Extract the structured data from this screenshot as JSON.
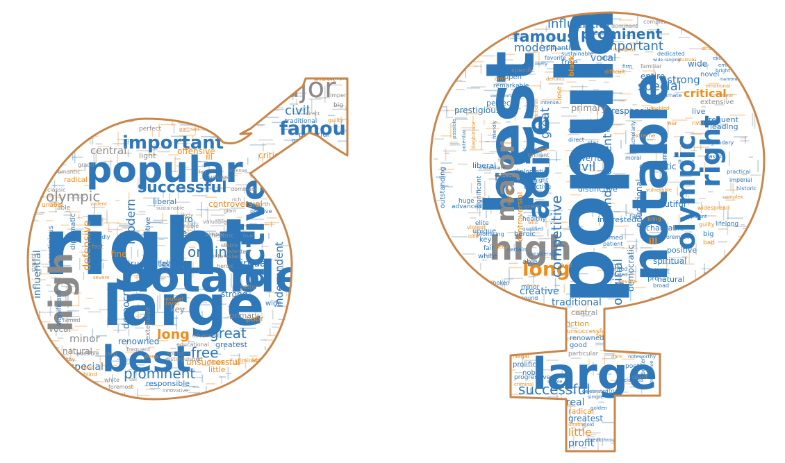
{
  "colors": {
    "outline": "#c8864a",
    "blue": "#2e77b8",
    "gray": "#8a8a8a",
    "orange": "#f08c1a"
  },
  "male": {
    "words": [
      {
        "t": "right",
        "c": "blue"
      },
      {
        "t": "large",
        "c": "blue"
      },
      {
        "t": "notable",
        "c": "blue"
      },
      {
        "t": "popular",
        "c": "blue"
      },
      {
        "t": "best",
        "c": "blue"
      },
      {
        "t": "high",
        "c": "gray"
      },
      {
        "t": "active",
        "c": "blue"
      },
      {
        "t": "major",
        "c": "gray"
      },
      {
        "t": "famous",
        "c": "blue"
      },
      {
        "t": "important",
        "c": "blue"
      },
      {
        "t": "successful",
        "c": "blue"
      },
      {
        "t": "original",
        "c": "blue"
      },
      {
        "t": "olympic",
        "c": "gray"
      },
      {
        "t": "great",
        "c": "blue"
      },
      {
        "t": "free",
        "c": "blue"
      },
      {
        "t": "prominent",
        "c": "blue"
      },
      {
        "t": "long",
        "c": "orange"
      },
      {
        "t": "central",
        "c": "gray"
      },
      {
        "t": "civil",
        "c": "blue"
      },
      {
        "t": "modern",
        "c": "blue"
      },
      {
        "t": "defensive",
        "c": "orange"
      },
      {
        "t": "independent",
        "c": "blue"
      },
      {
        "t": "democratic",
        "c": "blue"
      },
      {
        "t": "influential",
        "c": "blue"
      },
      {
        "t": "spiritual",
        "c": "blue"
      },
      {
        "t": "instrumental",
        "c": "blue"
      },
      {
        "t": "minor",
        "c": "gray"
      },
      {
        "t": "special",
        "c": "blue"
      },
      {
        "t": "vocal",
        "c": "gray"
      },
      {
        "t": "natural",
        "c": "gray"
      },
      {
        "t": "strong",
        "c": "blue"
      },
      {
        "t": "leading",
        "c": "blue"
      },
      {
        "t": "renowned",
        "c": "blue"
      },
      {
        "t": "unsuccessful",
        "c": "orange"
      },
      {
        "t": "responsible",
        "c": "blue"
      },
      {
        "t": "offensive",
        "c": "orange"
      },
      {
        "t": "controversial",
        "c": "orange"
      },
      {
        "t": "critical",
        "c": "orange"
      },
      {
        "t": "liberal",
        "c": "blue"
      },
      {
        "t": "light",
        "c": "gray"
      },
      {
        "t": "fine",
        "c": "orange"
      },
      {
        "t": "pro",
        "c": "blue"
      },
      {
        "t": "primary",
        "c": "gray"
      },
      {
        "t": "greatest",
        "c": "blue"
      },
      {
        "t": "prolific",
        "c": "blue"
      },
      {
        "t": "traditional",
        "c": "blue"
      },
      {
        "t": "good",
        "c": "blue"
      },
      {
        "t": "real",
        "c": "blue"
      },
      {
        "t": "fiction",
        "c": "blue"
      },
      {
        "t": "key",
        "c": "gray"
      },
      {
        "t": "wide",
        "c": "blue"
      },
      {
        "t": "live",
        "c": "blue"
      },
      {
        "t": "poor",
        "c": "orange"
      },
      {
        "t": "little",
        "c": "orange"
      },
      {
        "t": "radical",
        "c": "orange"
      },
      {
        "t": "competitive",
        "c": "blue"
      },
      {
        "t": "diplomatic",
        "c": "blue"
      },
      {
        "t": "prestigious",
        "c": "blue"
      },
      {
        "t": "extensive",
        "c": "gray"
      },
      {
        "t": "significant",
        "c": "blue"
      },
      {
        "t": "positive",
        "c": "blue"
      },
      {
        "t": "unique",
        "c": "gray"
      },
      {
        "t": "powerful",
        "c": "blue"
      },
      {
        "t": "black",
        "c": "orange"
      },
      {
        "t": "entire",
        "c": "gray"
      },
      {
        "t": "historic",
        "c": "gray"
      },
      {
        "t": "noble",
        "c": "gray"
      },
      {
        "t": "able",
        "c": "gray"
      },
      {
        "t": "interested",
        "c": "gray"
      },
      {
        "t": "distinguished",
        "c": "gray"
      },
      {
        "t": "romantic",
        "c": "gray"
      },
      {
        "t": "perfect",
        "c": "gray"
      },
      {
        "t": "fast",
        "c": "gray"
      },
      {
        "t": "big",
        "c": "gray"
      },
      {
        "t": "rival",
        "c": "orange"
      },
      {
        "t": "illegal",
        "c": "orange"
      },
      {
        "t": "outstanding",
        "c": "gray"
      },
      {
        "t": "sound",
        "c": "gray"
      },
      {
        "t": "blind",
        "c": "orange"
      },
      {
        "t": "white",
        "c": "gray"
      },
      {
        "t": "foremost",
        "c": "gray"
      },
      {
        "t": "dead",
        "c": "orange"
      },
      {
        "t": "possible",
        "c": "gray"
      },
      {
        "t": "educational",
        "c": "gray"
      },
      {
        "t": "advanced",
        "c": "gray"
      },
      {
        "t": "innovative",
        "c": "gray"
      },
      {
        "t": "heroic",
        "c": "gray"
      },
      {
        "t": "keen",
        "c": "orange"
      },
      {
        "t": "criminal",
        "c": "orange"
      },
      {
        "t": "famed",
        "c": "gray"
      },
      {
        "t": "friendly",
        "c": "blue"
      },
      {
        "t": "stable",
        "c": "gray"
      },
      {
        "t": "imperial",
        "c": "gray"
      },
      {
        "t": "valuable",
        "c": "gray"
      },
      {
        "t": "talented",
        "c": "gray"
      },
      {
        "t": "simple",
        "c": "gray"
      },
      {
        "t": "unable",
        "c": "orange"
      },
      {
        "t": "classic",
        "c": "gray"
      },
      {
        "t": "grand",
        "c": "gray"
      },
      {
        "t": "worth",
        "c": "gray"
      },
      {
        "t": "complex",
        "c": "gray"
      },
      {
        "t": "dominant",
        "c": "gray"
      },
      {
        "t": "guilty",
        "c": "orange"
      },
      {
        "t": "creative",
        "c": "gray"
      },
      {
        "t": "remarkable",
        "c": "gray"
      },
      {
        "t": "tall",
        "c": "gray"
      },
      {
        "t": "deep",
        "c": "orange"
      },
      {
        "t": "better",
        "c": "gray"
      },
      {
        "t": "wealthy",
        "c": "gray"
      },
      {
        "t": "straight",
        "c": "gray"
      },
      {
        "t": "unusual",
        "c": "orange"
      },
      {
        "t": "sustainable",
        "c": "gray"
      },
      {
        "t": "frequent",
        "c": "gray"
      },
      {
        "t": "clear",
        "c": "gray"
      },
      {
        "t": "ill",
        "c": "orange"
      },
      {
        "t": "violent",
        "c": "orange"
      },
      {
        "t": "severe",
        "c": "orange"
      },
      {
        "t": "difficult",
        "c": "orange"
      },
      {
        "t": "intense",
        "c": "gray"
      },
      {
        "t": "direct",
        "c": "gray"
      },
      {
        "t": "likely",
        "c": "gray"
      },
      {
        "t": "rich",
        "c": "gray"
      },
      {
        "t": "giant",
        "c": "gray"
      },
      {
        "t": "partisan",
        "c": "orange"
      },
      {
        "t": "familiar",
        "c": "gray"
      },
      {
        "t": "fair",
        "c": "gray"
      },
      {
        "t": "true",
        "c": "gray"
      }
    ]
  },
  "female": {
    "words": [
      {
        "t": "popular",
        "c": "blue"
      },
      {
        "t": "best",
        "c": "blue"
      },
      {
        "t": "notable",
        "c": "blue"
      },
      {
        "t": "large",
        "c": "blue"
      },
      {
        "t": "high",
        "c": "gray"
      },
      {
        "t": "active",
        "c": "blue"
      },
      {
        "t": "major",
        "c": "gray"
      },
      {
        "t": "right",
        "c": "blue"
      },
      {
        "t": "olympic",
        "c": "blue"
      },
      {
        "t": "long",
        "c": "orange"
      },
      {
        "t": "successful",
        "c": "blue"
      },
      {
        "t": "famous",
        "c": "blue"
      },
      {
        "t": "prominent",
        "c": "blue"
      },
      {
        "t": "important",
        "c": "blue"
      },
      {
        "t": "influential",
        "c": "blue"
      },
      {
        "t": "competitive",
        "c": "blue"
      },
      {
        "t": "original",
        "c": "blue"
      },
      {
        "t": "independent",
        "c": "blue"
      },
      {
        "t": "special",
        "c": "blue"
      },
      {
        "t": "civil",
        "c": "blue"
      },
      {
        "t": "great",
        "c": "blue"
      },
      {
        "t": "modern",
        "c": "blue"
      },
      {
        "t": "critical",
        "c": "orange"
      },
      {
        "t": "strong",
        "c": "blue"
      },
      {
        "t": "traditional",
        "c": "blue"
      },
      {
        "t": "creative",
        "c": "blue"
      },
      {
        "t": "primary",
        "c": "gray"
      },
      {
        "t": "vocal",
        "c": "blue"
      },
      {
        "t": "fine",
        "c": "blue"
      },
      {
        "t": "educational",
        "c": "blue"
      },
      {
        "t": "responsible",
        "c": "blue"
      },
      {
        "t": "prestigious",
        "c": "blue"
      },
      {
        "t": "democratic",
        "c": "blue"
      },
      {
        "t": "spiritual",
        "c": "blue"
      },
      {
        "t": "beautiful",
        "c": "blue"
      },
      {
        "t": "powerful",
        "c": "blue"
      },
      {
        "t": "dramatic",
        "c": "blue"
      },
      {
        "t": "instrumental",
        "c": "blue"
      },
      {
        "t": "charitable",
        "c": "blue"
      },
      {
        "t": "distinctive",
        "c": "blue"
      },
      {
        "t": "natural",
        "c": "blue"
      },
      {
        "t": "positive",
        "c": "blue"
      },
      {
        "t": "leading",
        "c": "blue"
      },
      {
        "t": "frequent",
        "c": "blue"
      },
      {
        "t": "live",
        "c": "blue"
      },
      {
        "t": "romantic",
        "c": "blue"
      },
      {
        "t": "free",
        "c": "blue"
      },
      {
        "t": "interested",
        "c": "blue"
      },
      {
        "t": "perfect",
        "c": "blue"
      },
      {
        "t": "liberal",
        "c": "blue"
      },
      {
        "t": "central",
        "c": "gray"
      },
      {
        "t": "fiction",
        "c": "orange"
      },
      {
        "t": "renowned",
        "c": "blue"
      },
      {
        "t": "good",
        "c": "blue"
      },
      {
        "t": "prolific",
        "c": "blue"
      },
      {
        "t": "noble",
        "c": "blue"
      },
      {
        "t": "progressive",
        "c": "blue"
      },
      {
        "t": "real",
        "c": "blue"
      },
      {
        "t": "greatest",
        "c": "blue"
      },
      {
        "t": "radical",
        "c": "orange"
      },
      {
        "t": "little",
        "c": "orange"
      },
      {
        "t": "profit",
        "c": "blue"
      },
      {
        "t": "particular",
        "c": "gray"
      },
      {
        "t": "unsuccessful",
        "c": "orange"
      },
      {
        "t": "controversial",
        "c": "orange"
      },
      {
        "t": "close",
        "c": "orange"
      },
      {
        "t": "extensive",
        "c": "gray"
      },
      {
        "t": "outstanding",
        "c": "blue"
      },
      {
        "t": "significant",
        "c": "blue"
      },
      {
        "t": "heroic",
        "c": "blue"
      },
      {
        "t": "unique",
        "c": "blue"
      },
      {
        "t": "key",
        "c": "blue"
      },
      {
        "t": "able",
        "c": "blue"
      },
      {
        "t": "white",
        "c": "blue"
      },
      {
        "t": "elite",
        "c": "blue"
      },
      {
        "t": "healthy",
        "c": "blue"
      },
      {
        "t": "distinguished",
        "c": "blue"
      },
      {
        "t": "diplomatic",
        "c": "blue"
      },
      {
        "t": "effective",
        "c": "blue"
      },
      {
        "t": "grand",
        "c": "gray"
      },
      {
        "t": "huge",
        "c": "blue"
      },
      {
        "t": "advanced",
        "c": "blue"
      },
      {
        "t": "promising",
        "c": "blue"
      },
      {
        "t": "fair",
        "c": "blue"
      },
      {
        "t": "straight",
        "c": "blue"
      },
      {
        "t": "brilliant",
        "c": "gray"
      },
      {
        "t": "wide",
        "c": "blue"
      },
      {
        "t": "entire",
        "c": "blue"
      },
      {
        "t": "novel",
        "c": "blue"
      },
      {
        "t": "specific",
        "c": "gray"
      },
      {
        "t": "open",
        "c": "blue"
      },
      {
        "t": "remarkable",
        "c": "blue"
      },
      {
        "t": "sustainable",
        "c": "blue"
      },
      {
        "t": "dedicated",
        "c": "blue"
      },
      {
        "t": "familiar",
        "c": "gray"
      },
      {
        "t": "rich",
        "c": "blue"
      },
      {
        "t": "favorite",
        "c": "blue"
      },
      {
        "t": "dominant",
        "c": "gray"
      },
      {
        "t": "complete",
        "c": "gray"
      },
      {
        "t": "uneven",
        "c": "orange"
      },
      {
        "t": "intimate",
        "c": "blue"
      },
      {
        "t": "precious",
        "c": "blue"
      },
      {
        "t": "hard",
        "c": "orange"
      },
      {
        "t": "moral",
        "c": "blue"
      },
      {
        "t": "war",
        "c": "orange"
      },
      {
        "t": "extreme",
        "c": "orange"
      },
      {
        "t": "rival",
        "c": "orange"
      },
      {
        "t": "legendary",
        "c": "blue"
      },
      {
        "t": "fluent",
        "c": "blue"
      },
      {
        "t": "classic",
        "c": "blue"
      },
      {
        "t": "practical",
        "c": "blue"
      },
      {
        "t": "imperial",
        "c": "blue"
      },
      {
        "t": "historic",
        "c": "blue"
      },
      {
        "t": "complex",
        "c": "orange"
      },
      {
        "t": "big",
        "c": "blue"
      },
      {
        "t": "bad",
        "c": "orange"
      },
      {
        "t": "guilty",
        "c": "orange"
      },
      {
        "t": "widespread",
        "c": "orange"
      },
      {
        "t": "rare",
        "c": "blue"
      },
      {
        "t": "ill",
        "c": "orange"
      },
      {
        "t": "foremost",
        "c": "blue"
      },
      {
        "t": "bling",
        "c": "orange"
      },
      {
        "t": "solid",
        "c": "blue"
      },
      {
        "t": "broad",
        "c": "blue"
      },
      {
        "t": "pro",
        "c": "blue"
      },
      {
        "t": "light",
        "c": "blue"
      },
      {
        "t": "famed",
        "c": "blue"
      },
      {
        "t": "patient",
        "c": "blue"
      },
      {
        "t": "certain",
        "c": "blue"
      },
      {
        "t": "considerable",
        "c": "blue"
      },
      {
        "t": "talented",
        "c": "blue"
      },
      {
        "t": "animated",
        "c": "blue"
      },
      {
        "t": "sound",
        "c": "blue"
      },
      {
        "t": "outspoken",
        "c": "blue"
      },
      {
        "t": "severe",
        "c": "orange"
      },
      {
        "t": "violent",
        "c": "orange"
      },
      {
        "t": "lone",
        "c": "orange"
      },
      {
        "t": "wild",
        "c": "orange"
      },
      {
        "t": "qualified",
        "c": "blue"
      },
      {
        "t": "lifelong",
        "c": "blue"
      },
      {
        "t": "poetic",
        "c": "blue"
      },
      {
        "t": "giant",
        "c": "gray"
      },
      {
        "t": "true",
        "c": "blue"
      },
      {
        "t": "simple",
        "c": "blue"
      },
      {
        "t": "celebrated",
        "c": "blue"
      },
      {
        "t": "illegal",
        "c": "orange"
      },
      {
        "t": "false",
        "c": "orange"
      },
      {
        "t": "dark",
        "c": "orange"
      },
      {
        "t": "criminal",
        "c": "orange"
      },
      {
        "t": "stable",
        "c": "blue"
      },
      {
        "t": "better",
        "c": "blue"
      },
      {
        "t": "exclusive",
        "c": "blue"
      },
      {
        "t": "noteworthy",
        "c": "blue"
      },
      {
        "t": "unable",
        "c": "orange"
      },
      {
        "t": "gold",
        "c": "blue"
      },
      {
        "t": "golden",
        "c": "blue"
      },
      {
        "t": "breakthrough",
        "c": "blue"
      },
      {
        "t": "acclaimed",
        "c": "blue"
      },
      {
        "t": "minor",
        "c": "blue"
      },
      {
        "t": "direct",
        "c": "blue"
      },
      {
        "t": "star",
        "c": "blue"
      },
      {
        "t": "strange",
        "c": "orange"
      },
      {
        "t": "emotional",
        "c": "orange"
      },
      {
        "t": "bright",
        "c": "blue"
      },
      {
        "t": "eminent",
        "c": "blue"
      },
      {
        "t": "excellent",
        "c": "blue"
      },
      {
        "t": "unusual",
        "c": "orange"
      },
      {
        "t": "difficult",
        "c": "orange"
      },
      {
        "t": "defunct",
        "c": "orange"
      },
      {
        "t": "notorious",
        "c": "orange"
      },
      {
        "t": "wealthy",
        "c": "blue"
      },
      {
        "t": "firm",
        "c": "blue"
      },
      {
        "t": "likely",
        "c": "blue"
      },
      {
        "t": "disabled",
        "c": "orange"
      },
      {
        "t": "intense",
        "c": "blue"
      },
      {
        "t": "valuable",
        "c": "blue"
      },
      {
        "t": "cross",
        "c": "orange"
      },
      {
        "t": "friendly",
        "c": "blue"
      },
      {
        "t": "fictional",
        "c": "orange"
      },
      {
        "t": "black",
        "c": "orange"
      },
      {
        "t": "scholarly",
        "c": "blue"
      },
      {
        "t": "limited",
        "c": "orange"
      },
      {
        "t": "possible",
        "c": "blue"
      },
      {
        "t": "potential",
        "c": "blue"
      },
      {
        "t": "illegitimate",
        "c": "orange"
      },
      {
        "t": "immediate",
        "c": "blue"
      },
      {
        "t": "vulnerable",
        "c": "orange"
      },
      {
        "t": "apparent",
        "c": "blue"
      },
      {
        "t": "deep",
        "c": "orange"
      },
      {
        "t": "bald",
        "c": "orange"
      },
      {
        "t": "memorable",
        "c": "blue"
      },
      {
        "t": "wide-ranging",
        "c": "blue"
      },
      {
        "t": "exceptional",
        "c": "blue"
      },
      {
        "t": "dear",
        "c": "orange"
      }
    ]
  }
}
